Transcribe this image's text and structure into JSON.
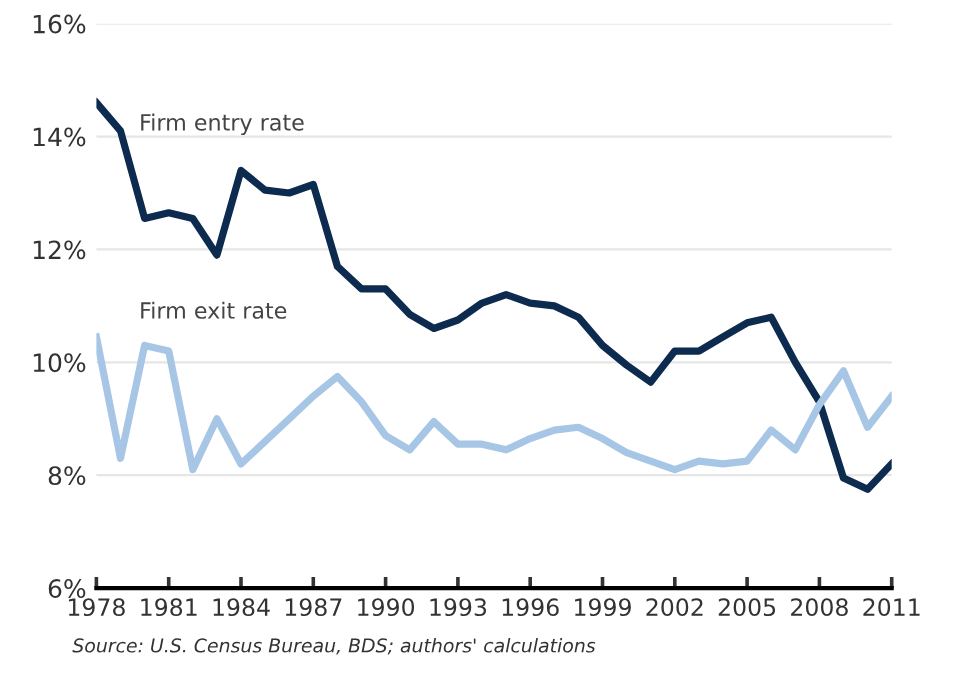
{
  "chart_data": {
    "type": "line",
    "x": [
      1978,
      1979,
      1980,
      1981,
      1982,
      1983,
      1984,
      1985,
      1986,
      1987,
      1988,
      1989,
      1990,
      1991,
      1992,
      1993,
      1994,
      1995,
      1996,
      1997,
      1998,
      1999,
      2000,
      2001,
      2002,
      2003,
      2004,
      2005,
      2006,
      2007,
      2008,
      2009,
      2010,
      2011
    ],
    "series": [
      {
        "name": "Firm entry rate",
        "color": "#0d2b4e",
        "values": [
          14.6,
          14.1,
          12.55,
          12.65,
          12.55,
          11.9,
          13.4,
          13.05,
          13.0,
          13.15,
          11.7,
          11.3,
          11.3,
          10.85,
          10.6,
          10.75,
          11.05,
          11.2,
          11.05,
          11.0,
          10.8,
          10.3,
          9.95,
          9.65,
          10.2,
          10.2,
          10.45,
          10.7,
          10.8,
          10.0,
          9.3,
          7.95,
          7.75,
          8.2
        ]
      },
      {
        "name": "Firm exit rate",
        "color": "#a7c6e6",
        "values": [
          10.45,
          8.3,
          10.3,
          10.2,
          8.1,
          9.0,
          8.2,
          8.6,
          9.0,
          9.4,
          9.75,
          9.3,
          8.7,
          8.45,
          8.95,
          8.55,
          8.55,
          8.45,
          8.65,
          8.8,
          8.85,
          8.65,
          8.4,
          8.25,
          8.1,
          8.25,
          8.2,
          8.25,
          8.8,
          8.45,
          9.25,
          9.85,
          8.85,
          9.4
        ]
      }
    ],
    "xlim": [
      1978,
      2011
    ],
    "xticks": [
      1978,
      1981,
      1984,
      1987,
      1990,
      1993,
      1996,
      1999,
      2002,
      2005,
      2008,
      2011
    ],
    "ylim": [
      6,
      16
    ],
    "yticks": [
      {
        "value": 6,
        "label": "6%"
      },
      {
        "value": 8,
        "label": "8%"
      },
      {
        "value": 10,
        "label": "10%"
      },
      {
        "value": 12,
        "label": "12%"
      },
      {
        "value": 14,
        "label": "14%"
      },
      {
        "value": 16,
        "label": "16%"
      }
    ],
    "grid": "y",
    "legend": false,
    "marker": "none",
    "line_style": "solid",
    "annotations": [
      "Source: U.S. Census Bureau, BDS; authors' calculations"
    ]
  }
}
